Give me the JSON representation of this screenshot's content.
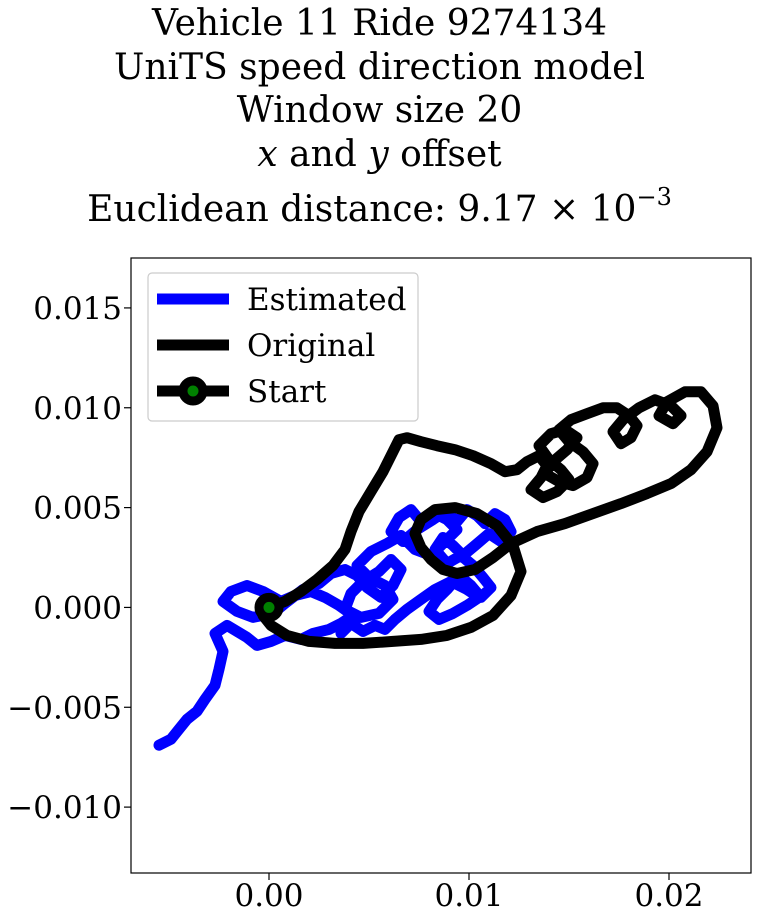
{
  "chart_data": {
    "type": "line",
    "title_lines": [
      "Vehicle 11 Ride 9274134",
      "UniTS speed direction model",
      "Window size 20",
      "offset",
      "Euclidean distance: 9.17 × 10"
    ],
    "title_italic_x": "x",
    "title_and": "and",
    "title_italic_y": "y",
    "title_exponent": "−3",
    "xlim": [
      -0.0069,
      0.0241
    ],
    "ylim": [
      -0.0133,
      0.0175
    ],
    "x_ticks": [
      0.0,
      0.01,
      0.02
    ],
    "x_tick_labels": [
      "0.00",
      "0.01",
      "0.02"
    ],
    "y_ticks": [
      -0.01,
      -0.005,
      0.0,
      0.005,
      0.01,
      0.015
    ],
    "y_tick_labels": [
      "−0.010",
      "−0.005",
      "0.000",
      "0.005",
      "0.010",
      "0.015"
    ],
    "grid": false,
    "legend_position": "top-left",
    "legend": [
      "Estimated",
      "Original",
      "Start"
    ],
    "colors": {
      "estimated": "#0000ff",
      "original": "#000000",
      "start_fill": "#008000",
      "start_edge": "#000000"
    },
    "series": [
      {
        "name": "Estimated",
        "x": [
          -0.0055,
          -0.0049,
          -0.0045,
          -0.0041,
          -0.0036,
          -0.0032,
          -0.0027,
          -0.0025,
          -0.0023,
          -0.0027,
          -0.0021,
          -0.0016,
          -0.0011,
          -0.0006,
          0.0001,
          0.0008,
          0.0016,
          0.0022,
          0.003,
          0.0036,
          0.0042,
          0.0035,
          0.0028,
          0.0021,
          0.0013,
          0.0006,
          -0.0003,
          -0.0011,
          -0.0019,
          -0.0023,
          -0.0016,
          -0.0008,
          0.0002,
          0.0008,
          0.0017,
          0.0025,
          0.0031,
          0.0038,
          0.0044,
          0.0049,
          0.0056,
          0.0062,
          0.0066,
          0.0061,
          0.0055,
          0.0047,
          0.0041,
          0.0038,
          0.0046,
          0.0055,
          0.0062,
          0.0058,
          0.005,
          0.0044,
          0.0051,
          0.0059,
          0.0066,
          0.0073,
          0.0081,
          0.0088,
          0.0094,
          0.0089,
          0.0083,
          0.0076,
          0.0071,
          0.0065,
          0.0061,
          0.0067,
          0.0074,
          0.0082,
          0.0088,
          0.0094,
          0.0099,
          0.0104,
          0.0108,
          0.0113,
          0.0118,
          0.0121,
          0.0116,
          0.011,
          0.0103,
          0.0097,
          0.0092,
          0.0087,
          0.0083,
          0.0089,
          0.0096,
          0.0102,
          0.0107,
          0.0111,
          0.0106,
          0.0101,
          0.0095,
          0.0089,
          0.0084,
          0.008,
          0.0085,
          0.0092,
          0.0099,
          0.0105,
          0.0099,
          0.0091,
          0.0083,
          0.0076,
          0.0069,
          0.0063,
          0.0058,
          0.0053,
          0.0047,
          0.0041,
          0.0036
        ],
        "y": [
          -0.0069,
          -0.0066,
          -0.0061,
          -0.0056,
          -0.0052,
          -0.0046,
          -0.0039,
          -0.0031,
          -0.0022,
          -0.0013,
          -0.0009,
          -0.0012,
          -0.0015,
          -0.0019,
          -0.0017,
          -0.0014,
          -0.0016,
          -0.0013,
          -0.0011,
          -0.0008,
          -0.0004,
          0.0001,
          0.0005,
          0.0008,
          0.0006,
          0.0003,
          0.0008,
          0.0011,
          0.0008,
          0.0003,
          -0.0002,
          -0.0005,
          -0.0003,
          0.0002,
          0.0009,
          0.0012,
          0.0017,
          0.0019,
          0.0016,
          0.001,
          0.0005,
          0.0011,
          0.0019,
          0.0024,
          0.0018,
          0.0013,
          0.0007,
          -0.0001,
          -0.0005,
          -0.0003,
          0.0004,
          0.0011,
          0.0015,
          0.0021,
          0.0028,
          0.0032,
          0.0036,
          0.0029,
          0.0026,
          0.0033,
          0.0039,
          0.0044,
          0.0047,
          0.0043,
          0.0049,
          0.0045,
          0.0038,
          0.0033,
          0.0039,
          0.0044,
          0.0048,
          0.0043,
          0.0049,
          0.0046,
          0.0042,
          0.0047,
          0.0044,
          0.0038,
          0.0033,
          0.0037,
          0.0031,
          0.0026,
          0.0031,
          0.0035,
          0.0029,
          0.0022,
          0.0026,
          0.0021,
          0.0015,
          0.001,
          0.0005,
          0.0011,
          0.0016,
          0.0009,
          0.0004,
          -0.0002,
          -0.0006,
          -0.0003,
          0.0001,
          0.0005,
          0.0009,
          0.0013,
          0.0009,
          0.0004,
          -0.0001,
          -0.0006,
          -0.0011,
          -0.0009,
          -0.0012,
          -0.0008,
          -0.0013
        ]
      },
      {
        "name": "Original",
        "x": [
          0.0,
          0.0008,
          0.0016,
          0.0024,
          0.0032,
          0.0038,
          0.0041,
          0.0045,
          0.0051,
          0.0057,
          0.0062,
          0.0065,
          0.0069,
          0.0076,
          0.0084,
          0.0093,
          0.0102,
          0.0111,
          0.0118,
          0.0124,
          0.0129,
          0.0135,
          0.0139,
          0.0136,
          0.0131,
          0.0137,
          0.0144,
          0.015,
          0.0146,
          0.014,
          0.0135,
          0.0141,
          0.0148,
          0.0154,
          0.0149,
          0.0142,
          0.0138,
          0.0145,
          0.0152,
          0.0159,
          0.0162,
          0.0157,
          0.015,
          0.0145,
          0.0151,
          0.0159,
          0.0167,
          0.0174,
          0.018,
          0.0184,
          0.0181,
          0.0176,
          0.0172,
          0.0177,
          0.0185,
          0.0193,
          0.0201,
          0.0206,
          0.0202,
          0.0195,
          0.0199,
          0.0208,
          0.0216,
          0.0222,
          0.0224,
          0.0219,
          0.0211,
          0.0201,
          0.0189,
          0.0176,
          0.0162,
          0.0148,
          0.0134,
          0.0121,
          0.0112,
          0.0103,
          0.0094,
          0.0087,
          0.0081,
          0.0076,
          0.0073,
          0.0076,
          0.0083,
          0.0093,
          0.0104,
          0.0114,
          0.0122,
          0.0126,
          0.0121,
          0.0112,
          0.0101,
          0.0089,
          0.0076,
          0.0062,
          0.0047,
          0.0033,
          0.002,
          0.0009,
          0.0001,
          -0.0003,
          -0.0001,
          0.0003,
          0.0001,
          0.0
        ],
        "y": [
          0.0,
          0.0003,
          0.0008,
          0.0014,
          0.0021,
          0.0029,
          0.0038,
          0.0048,
          0.0058,
          0.0068,
          0.0078,
          0.0084,
          0.0085,
          0.0083,
          0.0081,
          0.0079,
          0.0076,
          0.0072,
          0.0068,
          0.0069,
          0.0073,
          0.0076,
          0.0071,
          0.0065,
          0.0059,
          0.0055,
          0.0058,
          0.0064,
          0.0069,
          0.0074,
          0.0081,
          0.0087,
          0.0089,
          0.0085,
          0.0079,
          0.0073,
          0.0067,
          0.0063,
          0.0061,
          0.0065,
          0.0072,
          0.0078,
          0.0083,
          0.0089,
          0.0094,
          0.0097,
          0.01,
          0.01,
          0.0096,
          0.0091,
          0.0085,
          0.0082,
          0.0088,
          0.0094,
          0.01,
          0.0104,
          0.0101,
          0.0096,
          0.0092,
          0.0096,
          0.0103,
          0.0108,
          0.0108,
          0.0101,
          0.009,
          0.0078,
          0.0069,
          0.0062,
          0.0057,
          0.0052,
          0.0047,
          0.0042,
          0.0038,
          0.0032,
          0.0025,
          0.0019,
          0.0017,
          0.0019,
          0.0024,
          0.003,
          0.0037,
          0.0044,
          0.0049,
          0.005,
          0.0047,
          0.0041,
          0.0031,
          0.0018,
          0.0006,
          -0.0004,
          -0.001,
          -0.0014,
          -0.0016,
          -0.0017,
          -0.0018,
          -0.0018,
          -0.0017,
          -0.0014,
          -0.0009,
          -0.0004,
          0.0001,
          0.0003,
          0.0001,
          0.0
        ]
      }
    ],
    "start_point": {
      "x": 0.0,
      "y": 0.0
    }
  }
}
